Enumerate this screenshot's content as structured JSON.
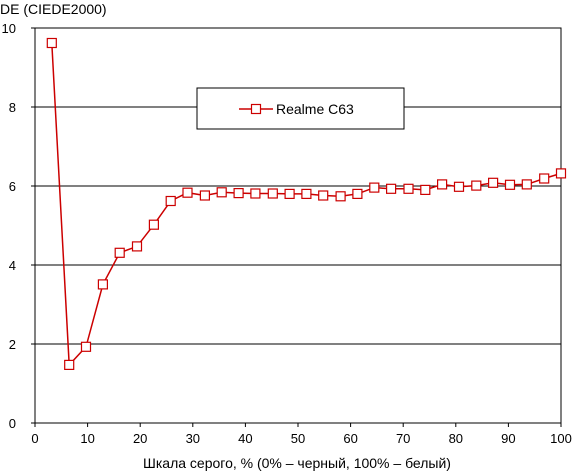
{
  "chart_data": {
    "type": "line",
    "title": "",
    "ylabel": "DE (CIEDE2000)",
    "xlabel": "Шкала серого, % (0% – черный, 100% – белый)",
    "xlim": [
      0,
      100
    ],
    "ylim": [
      0,
      10
    ],
    "x_ticks": [
      "0",
      "10",
      "20",
      "30",
      "40",
      "50",
      "60",
      "70",
      "80",
      "90",
      "100"
    ],
    "y_ticks": [
      "0",
      "2",
      "4",
      "6",
      "8",
      "10"
    ],
    "grid": "horizontal",
    "legend_position": "top-center",
    "series": [
      {
        "name": "Realme C63",
        "color": "#cc0000",
        "marker": "square-open",
        "x": [
          3.2,
          6.5,
          9.7,
          12.9,
          16.1,
          19.4,
          22.6,
          25.8,
          29.0,
          32.3,
          35.5,
          38.7,
          41.9,
          45.2,
          48.4,
          51.6,
          54.8,
          58.1,
          61.3,
          64.5,
          67.7,
          71.0,
          74.2,
          77.4,
          80.6,
          83.9,
          87.1,
          90.3,
          93.5,
          96.8,
          100.0
        ],
        "values": [
          9.62,
          1.47,
          1.93,
          3.51,
          4.31,
          4.47,
          5.02,
          5.62,
          5.83,
          5.76,
          5.84,
          5.82,
          5.81,
          5.81,
          5.8,
          5.8,
          5.76,
          5.74,
          5.8,
          5.96,
          5.93,
          5.93,
          5.9,
          6.04,
          5.98,
          6.01,
          6.08,
          6.03,
          6.04,
          6.19,
          6.32
        ]
      }
    ]
  }
}
